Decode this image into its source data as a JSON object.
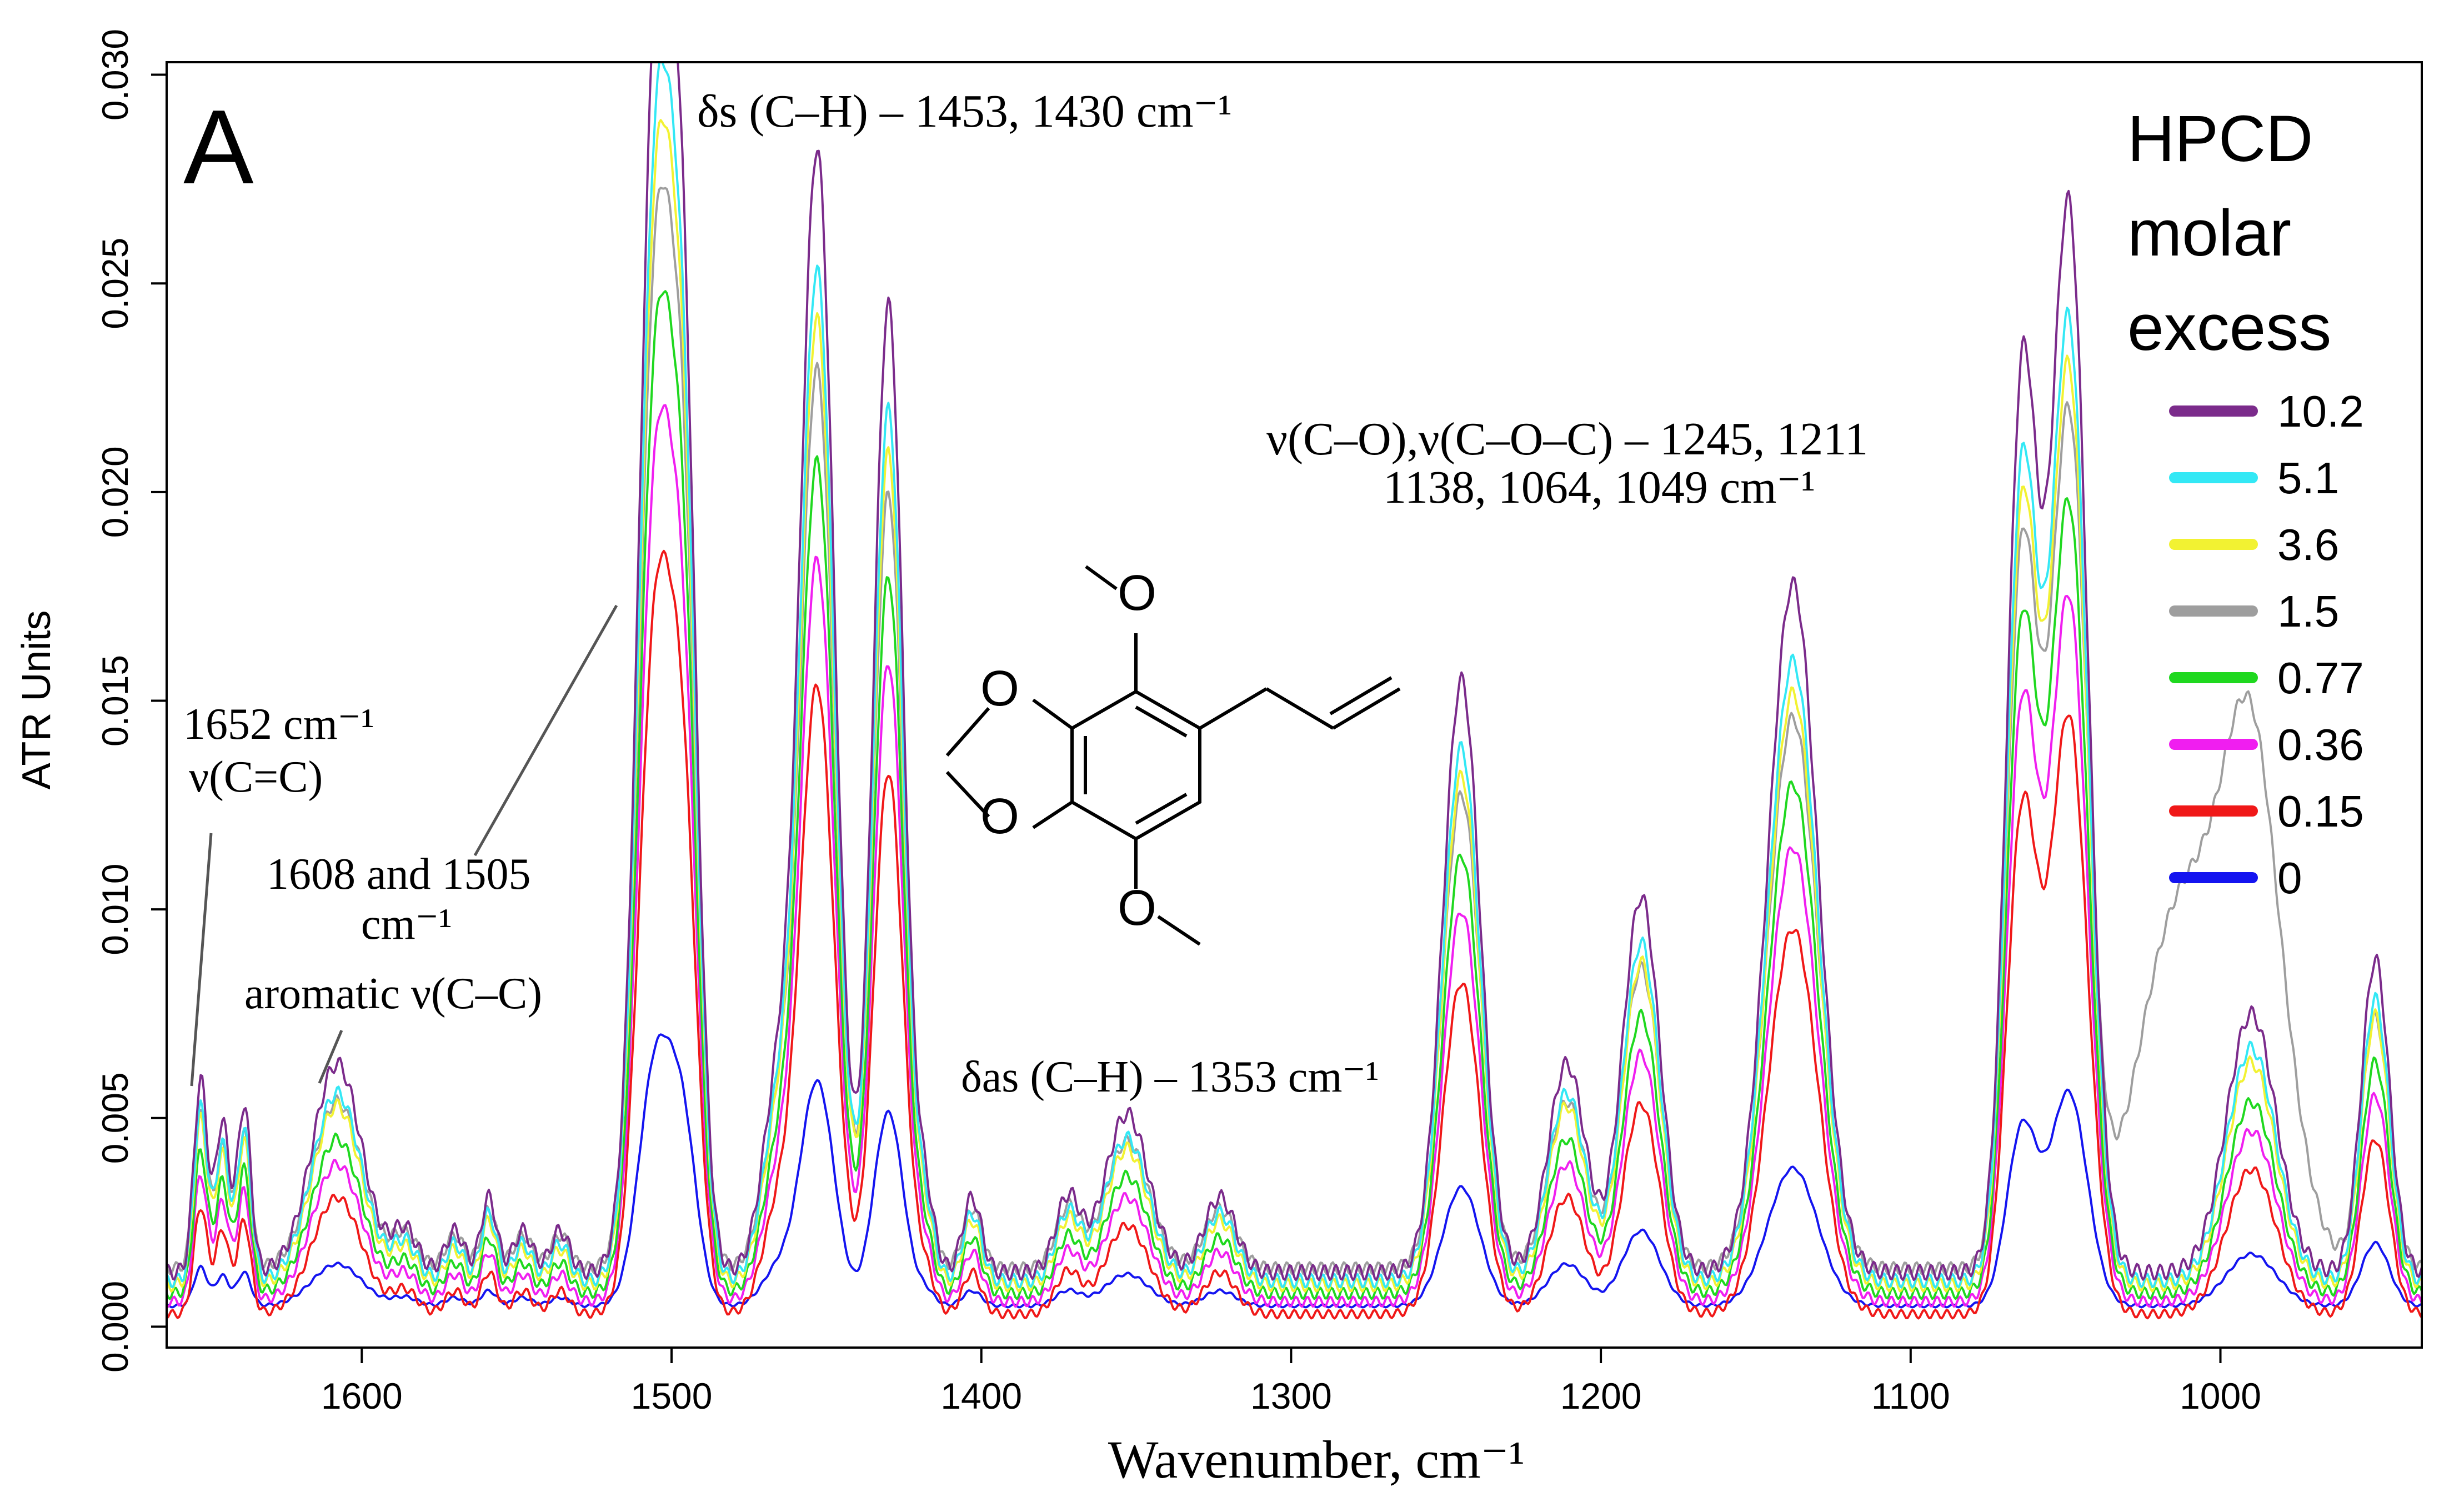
{
  "chart_data": {
    "type": "line",
    "panel_label": "A",
    "xlabel": "Wavenumber, cm⁻¹",
    "ylabel": "ATR Units",
    "xlim": [
      1663,
      935
    ],
    "ylim": [
      -0.0005,
      0.0303
    ],
    "x_reversed": true,
    "grid": false,
    "x_ticks": [
      1600,
      1500,
      1400,
      1300,
      1200,
      1100,
      1000
    ],
    "x_tick_labels": [
      "1600",
      "1500",
      "1400",
      "1300",
      "1200",
      "1100",
      "1000"
    ],
    "y_ticks": [
      0.0,
      0.005,
      0.01,
      0.015,
      0.02,
      0.025,
      0.03
    ],
    "y_tick_labels": [
      "0.000",
      "0.005",
      "0.010",
      "0.015",
      "0.020",
      "0.025",
      "0.030"
    ],
    "legend": {
      "title_lines": [
        "HPCD",
        "molar",
        "excess"
      ],
      "position": "right"
    },
    "series": [
      {
        "name": "10.2",
        "color": "#7b2b8b",
        "scale": 1.0,
        "base": 0.0013,
        "grey_bump": 0
      },
      {
        "name": "5.1",
        "color": "#33e8f5",
        "scale": 0.9,
        "base": 0.0011,
        "grey_bump": 0
      },
      {
        "name": "3.6",
        "color": "#f2f232",
        "scale": 0.86,
        "base": 0.001,
        "grey_bump": 0
      },
      {
        "name": "1.5",
        "color": "#9e9e9e",
        "scale": 0.8,
        "base": 0.0014,
        "grey_bump": 1
      },
      {
        "name": "0.77",
        "color": "#1fd81f",
        "scale": 0.74,
        "base": 0.0008,
        "grey_bump": 0
      },
      {
        "name": "0.36",
        "color": "#f01ef0",
        "scale": 0.66,
        "base": 0.0006,
        "grey_bump": 0
      },
      {
        "name": "0.15",
        "color": "#f01818",
        "scale": 0.56,
        "base": 0.0003,
        "grey_bump": 0
      },
      {
        "name": "0",
        "color": "#1414f0",
        "scale": 0.2,
        "base": 0.0005,
        "grey_bump": 0
      }
    ],
    "peaks": [
      {
        "x": 1652,
        "y": 0.0046,
        "w": 2.2
      },
      {
        "x": 1645,
        "y": 0.0036,
        "w": 2.2
      },
      {
        "x": 1638,
        "y": 0.004,
        "w": 2.2
      },
      {
        "x": 1608,
        "y": 0.005,
        "w": 8
      },
      {
        "x": 1586,
        "y": 0.001,
        "w": 4
      },
      {
        "x": 1570,
        "y": 0.001,
        "w": 3
      },
      {
        "x": 1559,
        "y": 0.0018,
        "w": 2.5
      },
      {
        "x": 1548,
        "y": 0.001,
        "w": 3
      },
      {
        "x": 1536,
        "y": 0.001,
        "w": 3
      },
      {
        "x": 1505,
        "y": 0.029,
        "w": 5.5
      },
      {
        "x": 1496,
        "y": 0.018,
        "w": 4.5
      },
      {
        "x": 1466,
        "y": 0.004,
        "w": 5
      },
      {
        "x": 1453,
        "y": 0.0268,
        "w": 5.5
      },
      {
        "x": 1430,
        "y": 0.0232,
        "w": 4.8
      },
      {
        "x": 1418,
        "y": 0.0016,
        "w": 3
      },
      {
        "x": 1403,
        "y": 0.0018,
        "w": 3
      },
      {
        "x": 1372,
        "y": 0.0018,
        "w": 4
      },
      {
        "x": 1353,
        "y": 0.0038,
        "w": 7
      },
      {
        "x": 1323,
        "y": 0.0018,
        "w": 5
      },
      {
        "x": 1245,
        "y": 0.0142,
        "w": 6
      },
      {
        "x": 1211,
        "y": 0.005,
        "w": 6
      },
      {
        "x": 1187,
        "y": 0.009,
        "w": 6
      },
      {
        "x": 1138,
        "y": 0.0165,
        "w": 8
      },
      {
        "x": 1064,
        "y": 0.021,
        "w": 5
      },
      {
        "x": 1049,
        "y": 0.0255,
        "w": 6
      },
      {
        "x": 990,
        "y": 0.0062,
        "w": 8
      },
      {
        "x": 950,
        "y": 0.0075,
        "w": 4.5
      }
    ],
    "annotations": [
      {
        "text": "δs (C–H) – 1453, 1430 cm⁻¹",
        "x": 1420,
        "y": 0.0285
      },
      {
        "text": "ν(C–O),ν(C–O–C) – 1245, 1211",
        "x": 1260,
        "y": 0.0212
      },
      {
        "text": "1138, 1064, 1049 cm⁻¹",
        "x": 1260,
        "y": 0.0199
      },
      {
        "text": "1652 cm⁻¹",
        "x": 1655,
        "y": 0.0145
      },
      {
        "text": "ν(C=C)",
        "x": 1655,
        "y": 0.0131
      },
      {
        "text": "1608 and 1505",
        "x": 1592,
        "y": 0.011
      },
      {
        "text": "cm⁻¹",
        "x": 1592,
        "y": 0.0098
      },
      {
        "text": "aromatic ν(C–C)",
        "x": 1592,
        "y": 0.0083
      },
      {
        "text": "δas (C–H) – 1353 cm⁻¹",
        "x": 1340,
        "y": 0.0061
      }
    ]
  }
}
